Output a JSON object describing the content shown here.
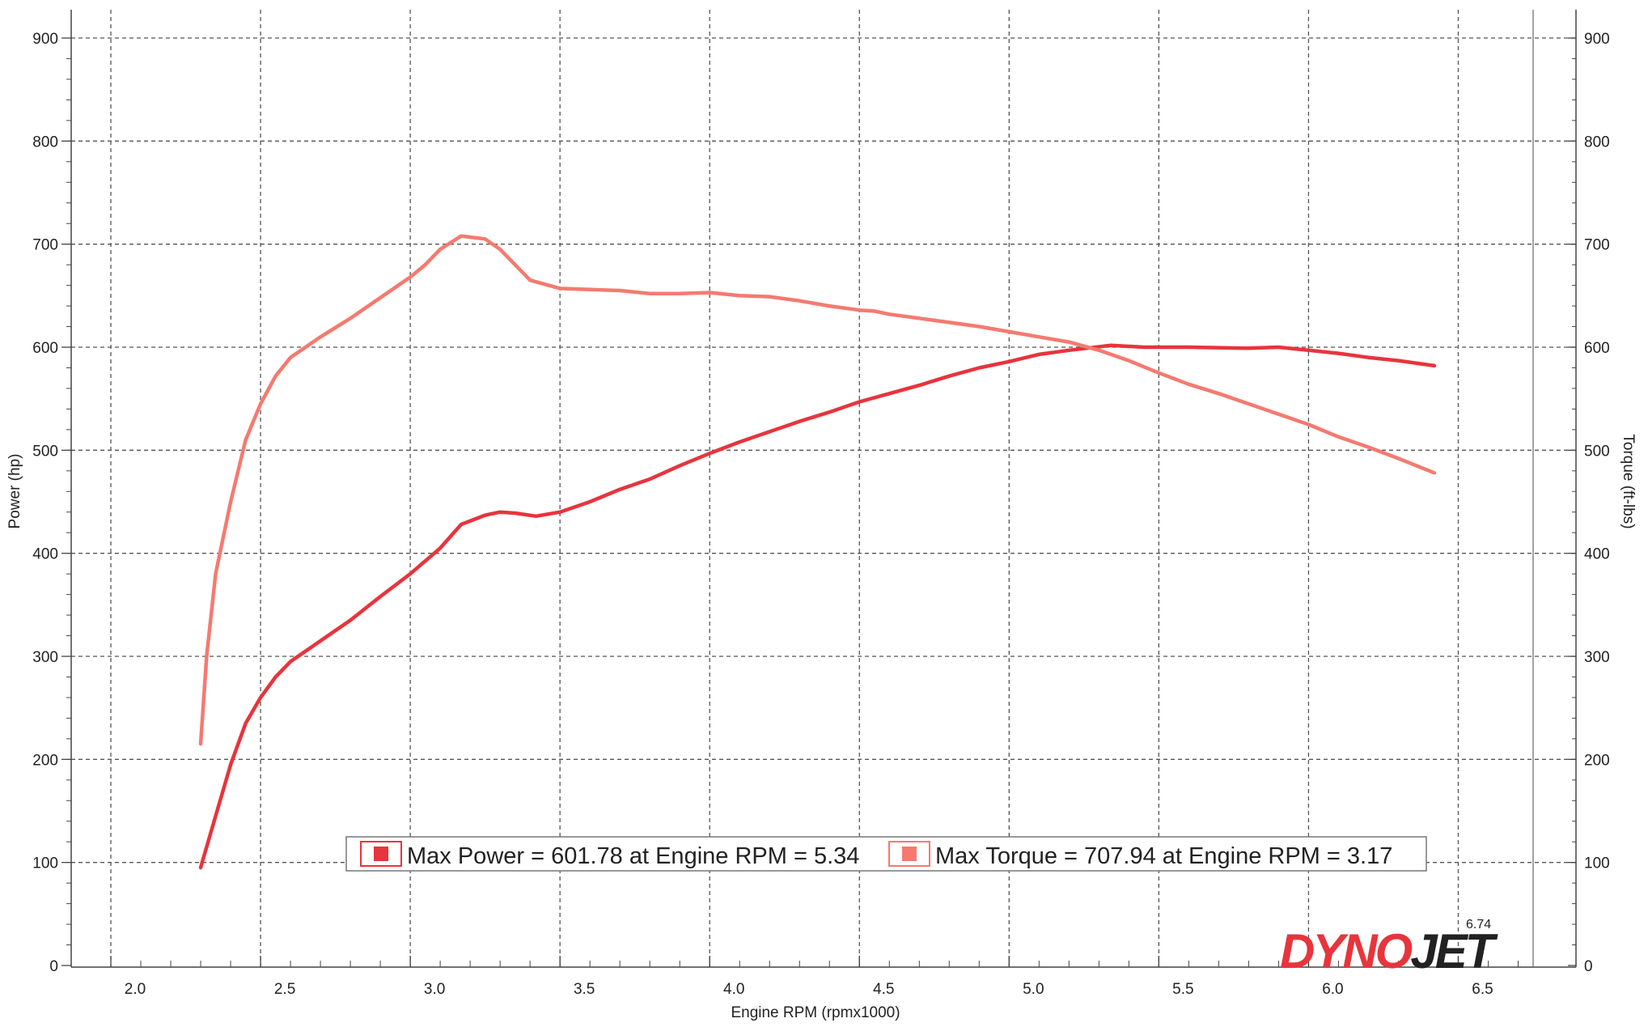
{
  "chart_data": {
    "type": "line",
    "x_axis": {
      "label": "Engine RPM (rpmx1000)",
      "range": [
        1.9,
        6.75
      ],
      "ticks": [
        "2.0",
        "2.5",
        "3.0",
        "3.5",
        "4.0",
        "4.5",
        "5.0",
        "5.5",
        "6.0",
        "6.5"
      ]
    },
    "y_left": {
      "label": "Power (hp)",
      "range": [
        0,
        900
      ],
      "ticks": [
        "0",
        "100",
        "200",
        "300",
        "400",
        "500",
        "600",
        "700",
        "800",
        "900"
      ]
    },
    "y_right": {
      "label": "Torque (ft-lbs)",
      "range": [
        0,
        900
      ],
      "ticks": [
        "0",
        "100",
        "200",
        "300",
        "400",
        "500",
        "600",
        "700",
        "800",
        "900"
      ]
    },
    "grid": true,
    "series": [
      {
        "color": "#e8343c",
        "axis": "left",
        "points": [
          [
            2.3,
            95
          ],
          [
            2.35,
            145
          ],
          [
            2.4,
            195
          ],
          [
            2.45,
            235
          ],
          [
            2.5,
            260
          ],
          [
            2.55,
            280
          ],
          [
            2.6,
            295
          ],
          [
            2.7,
            315
          ],
          [
            2.8,
            335
          ],
          [
            2.9,
            358
          ],
          [
            3.0,
            380
          ],
          [
            3.1,
            405
          ],
          [
            3.17,
            428
          ],
          [
            3.25,
            437
          ],
          [
            3.3,
            440
          ],
          [
            3.35,
            439
          ],
          [
            3.42,
            436
          ],
          [
            3.5,
            440
          ],
          [
            3.6,
            450
          ],
          [
            3.7,
            462
          ],
          [
            3.8,
            472
          ],
          [
            3.9,
            485
          ],
          [
            4.0,
            497
          ],
          [
            4.1,
            508
          ],
          [
            4.2,
            518
          ],
          [
            4.3,
            528
          ],
          [
            4.4,
            537
          ],
          [
            4.5,
            547
          ],
          [
            4.6,
            555
          ],
          [
            4.7,
            563
          ],
          [
            4.8,
            572
          ],
          [
            4.9,
            580
          ],
          [
            5.0,
            586
          ],
          [
            5.1,
            593
          ],
          [
            5.2,
            597
          ],
          [
            5.34,
            601.78
          ],
          [
            5.45,
            600
          ],
          [
            5.6,
            600
          ],
          [
            5.8,
            599
          ],
          [
            5.9,
            600
          ],
          [
            6.0,
            597
          ],
          [
            6.1,
            594
          ],
          [
            6.2,
            590
          ],
          [
            6.3,
            587
          ],
          [
            6.42,
            582
          ]
        ]
      },
      {
        "color": "#f47a70",
        "axis": "right",
        "points": [
          [
            2.3,
            215
          ],
          [
            2.32,
            300
          ],
          [
            2.35,
            380
          ],
          [
            2.4,
            450
          ],
          [
            2.45,
            510
          ],
          [
            2.5,
            545
          ],
          [
            2.55,
            572
          ],
          [
            2.6,
            590
          ],
          [
            2.7,
            610
          ],
          [
            2.8,
            628
          ],
          [
            2.9,
            648
          ],
          [
            3.0,
            668
          ],
          [
            3.05,
            680
          ],
          [
            3.1,
            695
          ],
          [
            3.17,
            707.94
          ],
          [
            3.25,
            705
          ],
          [
            3.3,
            695
          ],
          [
            3.35,
            680
          ],
          [
            3.4,
            665
          ],
          [
            3.5,
            657
          ],
          [
            3.6,
            656
          ],
          [
            3.7,
            655
          ],
          [
            3.8,
            652
          ],
          [
            3.9,
            652
          ],
          [
            4.0,
            653
          ],
          [
            4.1,
            650
          ],
          [
            4.2,
            649
          ],
          [
            4.3,
            645
          ],
          [
            4.4,
            640
          ],
          [
            4.5,
            636
          ],
          [
            4.55,
            635
          ],
          [
            4.6,
            632
          ],
          [
            4.7,
            628
          ],
          [
            4.8,
            624
          ],
          [
            4.9,
            620
          ],
          [
            5.0,
            615
          ],
          [
            5.1,
            610
          ],
          [
            5.2,
            605
          ],
          [
            5.3,
            597
          ],
          [
            5.4,
            587
          ],
          [
            5.5,
            575
          ],
          [
            5.6,
            564
          ],
          [
            5.7,
            555
          ],
          [
            5.8,
            545
          ],
          [
            5.9,
            535
          ],
          [
            6.0,
            525
          ],
          [
            6.1,
            513
          ],
          [
            6.2,
            503
          ],
          [
            6.3,
            492
          ],
          [
            6.42,
            478
          ]
        ]
      }
    ],
    "legend": {
      "placement": "bottom-center",
      "entries": [
        {
          "text": "Max Power = 601.78 at Engine RPM = 5.34",
          "color": "#e8343c"
        },
        {
          "text": "Max Torque = 707.94 at Engine RPM = 3.17",
          "color": "#f47a70"
        }
      ]
    }
  },
  "branding": {
    "logo": "DYNOJET",
    "version": "6.74",
    "logo_color": "#e8343c",
    "logo_dark": "#222222"
  }
}
